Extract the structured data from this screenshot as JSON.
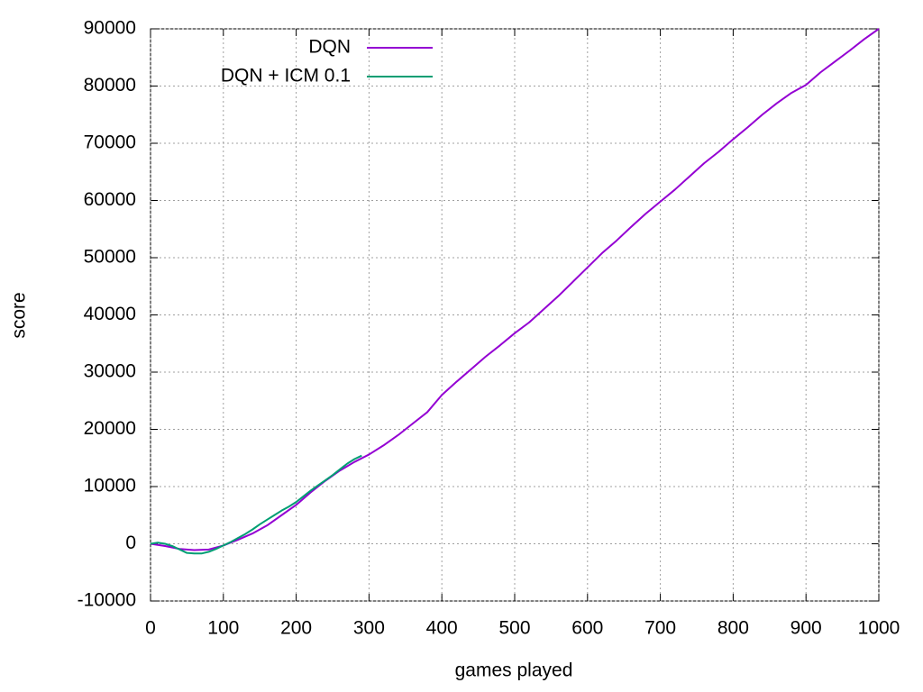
{
  "chart_data": {
    "type": "line",
    "x_label": "games played",
    "y_label": "score",
    "xlim": [
      0,
      1000
    ],
    "ylim": [
      -10000,
      90000
    ],
    "xticks": [
      0,
      100,
      200,
      300,
      400,
      500,
      600,
      700,
      800,
      900,
      1000
    ],
    "yticks": [
      -10000,
      0,
      10000,
      20000,
      30000,
      40000,
      50000,
      60000,
      70000,
      80000,
      90000
    ],
    "grid": true,
    "legend": "top-left",
    "series": [
      {
        "name": "DQN",
        "color": "#9400d3",
        "x": [
          0,
          20,
          40,
          60,
          80,
          100,
          120,
          140,
          160,
          180,
          200,
          220,
          240,
          260,
          280,
          300,
          320,
          340,
          360,
          380,
          400,
          420,
          440,
          460,
          480,
          500,
          520,
          540,
          560,
          580,
          600,
          620,
          640,
          660,
          680,
          700,
          720,
          740,
          760,
          780,
          800,
          820,
          840,
          860,
          880,
          900,
          920,
          940,
          960,
          980,
          1000
        ],
        "values": [
          0,
          -400,
          -900,
          -1100,
          -1000,
          -300,
          700,
          1800,
          3200,
          5000,
          6800,
          9000,
          11000,
          12800,
          14300,
          15600,
          17200,
          19000,
          21000,
          23000,
          26000,
          28300,
          30500,
          32700,
          34700,
          36800,
          38700,
          41000,
          43300,
          45800,
          48300,
          50800,
          53000,
          55400,
          57700,
          59800,
          61900,
          64200,
          66500,
          68500,
          70700,
          72800,
          75000,
          77000,
          78800,
          80200,
          82400,
          84300,
          86200,
          88200,
          90000
        ]
      },
      {
        "name": "DQN + ICM 0.1",
        "color": "#009e73",
        "x": [
          0,
          10,
          20,
          30,
          40,
          50,
          60,
          70,
          80,
          90,
          100,
          110,
          120,
          130,
          140,
          150,
          160,
          170,
          180,
          190,
          200,
          210,
          220,
          230,
          240,
          250,
          260,
          270,
          280,
          290
        ],
        "values": [
          0,
          200,
          0,
          -400,
          -1000,
          -1600,
          -1700,
          -1700,
          -1400,
          -900,
          -300,
          300,
          1000,
          1700,
          2500,
          3400,
          4200,
          5000,
          5800,
          6500,
          7300,
          8300,
          9300,
          10200,
          11100,
          12000,
          13000,
          14000,
          14800,
          15400
        ]
      }
    ]
  }
}
